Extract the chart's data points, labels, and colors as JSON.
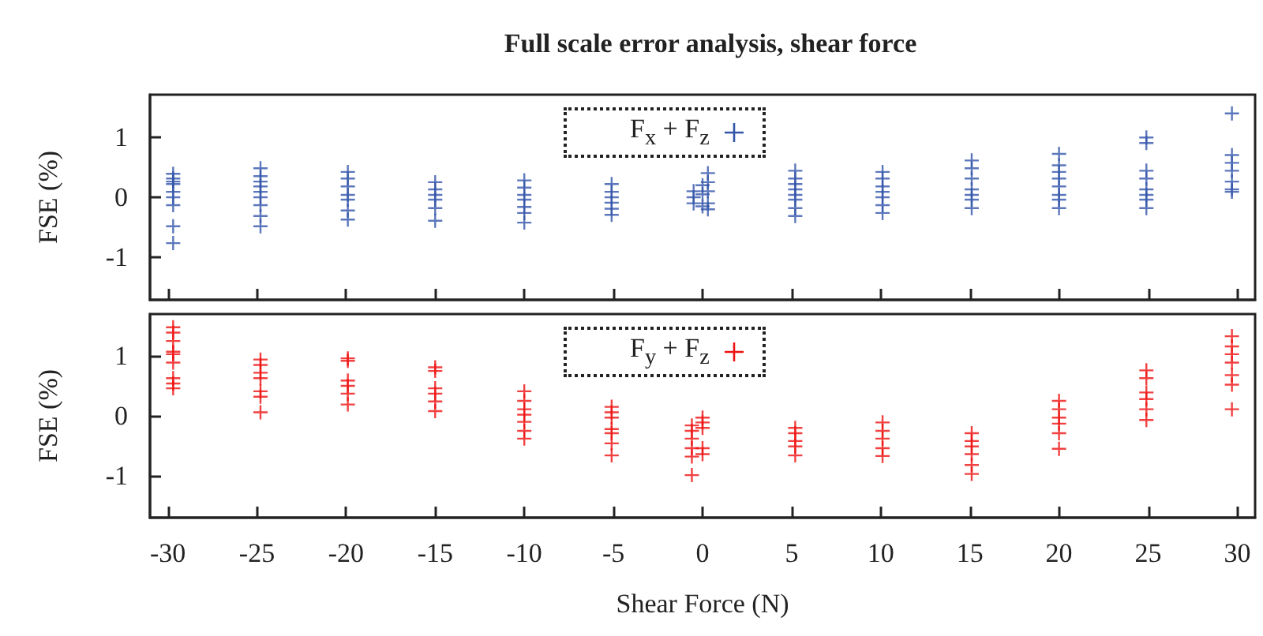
{
  "chart_data": [
    {
      "type": "scatter",
      "title": "Full scale error analysis, shear force",
      "ylabel": "FSE (%)",
      "xlim": [
        -31,
        31
      ],
      "xticks": [
        -30,
        -25,
        -20,
        -15,
        -10,
        -5,
        0,
        5,
        10,
        15,
        20,
        25,
        30
      ],
      "ylim": [
        -1.7,
        1.7
      ],
      "yticks": [
        -1,
        0,
        1
      ],
      "tick_labels": "y",
      "grid": false,
      "legend": "top",
      "marker": "cross",
      "series": [
        {
          "name": "F$_{x}$ + F$_{z}$",
          "color": "#3355aa",
          "x": [
            -29.7,
            -29.7,
            -29.7,
            -29.7,
            -29.7,
            -29.7,
            -29.7,
            -29.7,
            -29.7,
            -24.8,
            -24.8,
            -24.8,
            -24.8,
            -24.8,
            -24.8,
            -24.8,
            -24.8,
            -24.8,
            -19.9,
            -19.9,
            -19.9,
            -19.9,
            -19.9,
            -19.9,
            -19.9,
            -15,
            -15,
            -15,
            -15,
            -15,
            -15,
            -10,
            -10,
            -10,
            -10,
            -10,
            -10,
            -10,
            -5.1,
            -5.1,
            -5.1,
            -5.1,
            -5.1,
            -5.1,
            -0.5,
            -0.5,
            -0.5,
            0,
            0,
            0,
            0.3,
            0.3,
            0.3,
            0.3,
            0.3,
            5.2,
            5.2,
            5.2,
            5.2,
            5.2,
            5.2,
            5.2,
            5.2,
            10.1,
            10.1,
            10.1,
            10.1,
            10.1,
            10.1,
            10.1,
            15.1,
            15.1,
            15.1,
            15.1,
            15.1,
            15.1,
            15.1,
            20,
            20,
            20,
            20,
            20,
            20,
            20,
            20,
            24.9,
            24.9,
            24.9,
            24.9,
            24.9,
            24.9,
            24.9,
            24.9,
            29.7,
            29.7,
            29.7,
            29.7,
            29.7,
            29.7,
            29.7
          ],
          "values": [
            0.39,
            0.31,
            0.26,
            0.22,
            0.09,
            0,
            -0.13,
            -0.48,
            -0.76,
            0.48,
            0.35,
            0.26,
            0.18,
            0.09,
            0,
            -0.13,
            -0.31,
            -0.48,
            0.42,
            0.31,
            0.18,
            0.04,
            -0.04,
            -0.22,
            -0.37,
            0.25,
            0.13,
            0.04,
            -0.04,
            -0.18,
            -0.39,
            0.28,
            0.16,
            0.04,
            -0.04,
            -0.16,
            -0.26,
            -0.42,
            0.22,
            0.09,
            0,
            -0.09,
            -0.19,
            -0.29,
            0.1,
            0,
            -0.1,
            0.2,
            0.05,
            -0.15,
            0.4,
            0.25,
            0.1,
            -0.1,
            -0.2,
            0.44,
            0.31,
            0.22,
            0.13,
            0.04,
            -0.04,
            -0.18,
            -0.31,
            0.42,
            0.31,
            0.18,
            0.09,
            0,
            -0.13,
            -0.26,
            0.61,
            0.48,
            0.31,
            0.13,
            0.04,
            -0.04,
            -0.18,
            0.72,
            0.53,
            0.42,
            0.31,
            0.18,
            0.04,
            -0.04,
            -0.18,
            0.99,
            0.9,
            0.44,
            0.31,
            0.13,
            0.04,
            -0.04,
            -0.18,
            1.39,
            0.7,
            0.57,
            0.44,
            0.26,
            0.13,
            0.09
          ]
        }
      ]
    },
    {
      "type": "scatter",
      "xlabel": "Shear Force (N)",
      "ylabel": "FSE (%)",
      "xlim": [
        -31,
        31
      ],
      "xticks": [
        -30,
        -25,
        -20,
        -15,
        -10,
        -5,
        0,
        5,
        10,
        15,
        20,
        25,
        30
      ],
      "ylim": [
        -1.7,
        1.7
      ],
      "yticks": [
        -1,
        0,
        1
      ],
      "grid": false,
      "legend": "top",
      "marker": "cross",
      "series": [
        {
          "name": "F$_{y}$ + F$_{z}$",
          "color": "#ee1111",
          "x": [
            -29.7,
            -29.7,
            -29.7,
            -29.7,
            -29.7,
            -29.7,
            -29.7,
            -29.7,
            -29.7,
            -24.8,
            -24.8,
            -24.8,
            -24.8,
            -24.8,
            -24.8,
            -24.8,
            -19.9,
            -19.9,
            -19.9,
            -19.9,
            -19.9,
            -19.9,
            -15,
            -15,
            -15,
            -15,
            -15,
            -15,
            -10,
            -10,
            -10,
            -10,
            -10,
            -10,
            -10,
            -5.1,
            -5.1,
            -5.1,
            -5.1,
            -5.1,
            -5.1,
            -5.1,
            -0.6,
            -0.6,
            -0.6,
            -0.6,
            -0.6,
            -0.6,
            0,
            0,
            0,
            0,
            0,
            5.2,
            5.2,
            5.2,
            5.2,
            5.2,
            10.1,
            10.1,
            10.1,
            10.1,
            10.1,
            15.1,
            15.1,
            15.1,
            15.1,
            15.1,
            15.1,
            20,
            20,
            20,
            20,
            20,
            20,
            24.9,
            24.9,
            24.9,
            24.9,
            24.9,
            24.9,
            29.7,
            29.7,
            29.7,
            29.7,
            29.7,
            29.7,
            29.7
          ],
          "values": [
            1.48,
            1.39,
            1.25,
            1.07,
            1.03,
            0.89,
            0.63,
            0.54,
            0.46,
            0.94,
            0.85,
            0.72,
            0.63,
            0.41,
            0.32,
            0.06,
            0.96,
            0.92,
            0.59,
            0.5,
            0.37,
            0.19,
            0.81,
            0.75,
            0.46,
            0.37,
            0.24,
            0.08,
            0.41,
            0.25,
            0.11,
            0.02,
            -0.1,
            -0.25,
            -0.38,
            0.15,
            0.06,
            -0.03,
            -0.22,
            -0.29,
            -0.46,
            -0.66,
            -0.16,
            -0.25,
            -0.38,
            -0.54,
            -0.68,
            -0.99,
            -0.03,
            -0.11,
            -0.2,
            -0.54,
            -0.64,
            -0.2,
            -0.29,
            -0.42,
            -0.51,
            -0.66,
            -0.11,
            -0.25,
            -0.38,
            -0.54,
            -0.67,
            -0.29,
            -0.42,
            -0.51,
            -0.64,
            -0.82,
            -0.97,
            0.25,
            0.11,
            -0.03,
            -0.13,
            -0.29,
            -0.55,
            0.76,
            0.63,
            0.39,
            0.28,
            0.11,
            -0.07,
            1.33,
            1.16,
            1.03,
            0.89,
            0.68,
            0.52,
            0.11
          ]
        }
      ]
    }
  ]
}
